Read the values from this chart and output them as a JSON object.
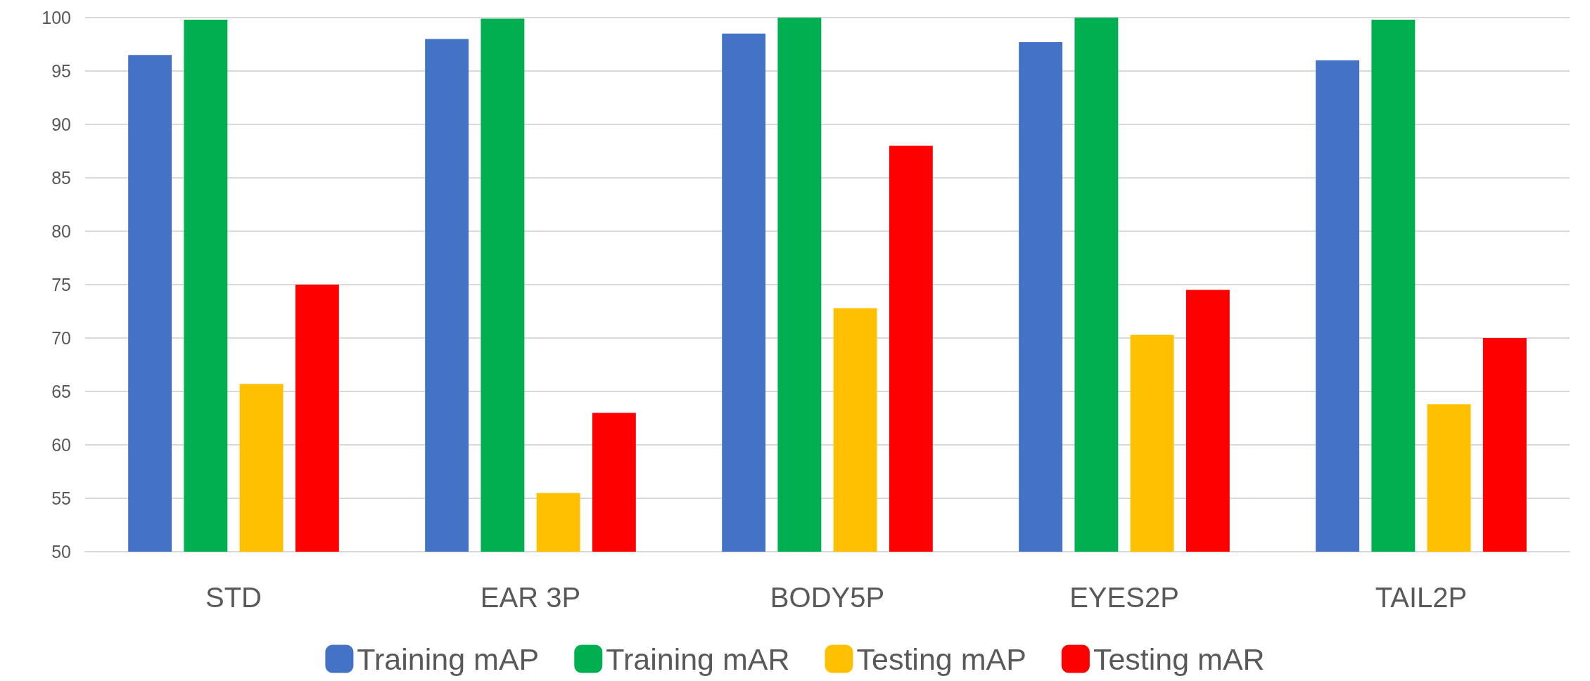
{
  "chart_data": {
    "type": "bar",
    "categories": [
      "STD",
      "EAR 3P",
      "BODY5P",
      "EYES2P",
      "TAIL2P"
    ],
    "series": [
      {
        "name": "Training mAP",
        "color": "#4472c4",
        "values": [
          96.5,
          98,
          98.5,
          97.7,
          96
        ]
      },
      {
        "name": "Training mAR",
        "color": "#00b050",
        "values": [
          99.8,
          99.9,
          100,
          100,
          99.8
        ]
      },
      {
        "name": "Testing mAP",
        "color": "#ffc000",
        "values": [
          65.7,
          55.5,
          72.8,
          70.3,
          63.8
        ]
      },
      {
        "name": "Testing mAR",
        "color": "#ff0000",
        "values": [
          75,
          63,
          88,
          74.5,
          70
        ]
      }
    ],
    "ylim": [
      50,
      100
    ],
    "yticks": [
      50,
      55,
      60,
      65,
      70,
      75,
      80,
      85,
      90,
      95,
      100
    ],
    "grid": "y",
    "legend": "bottom"
  }
}
